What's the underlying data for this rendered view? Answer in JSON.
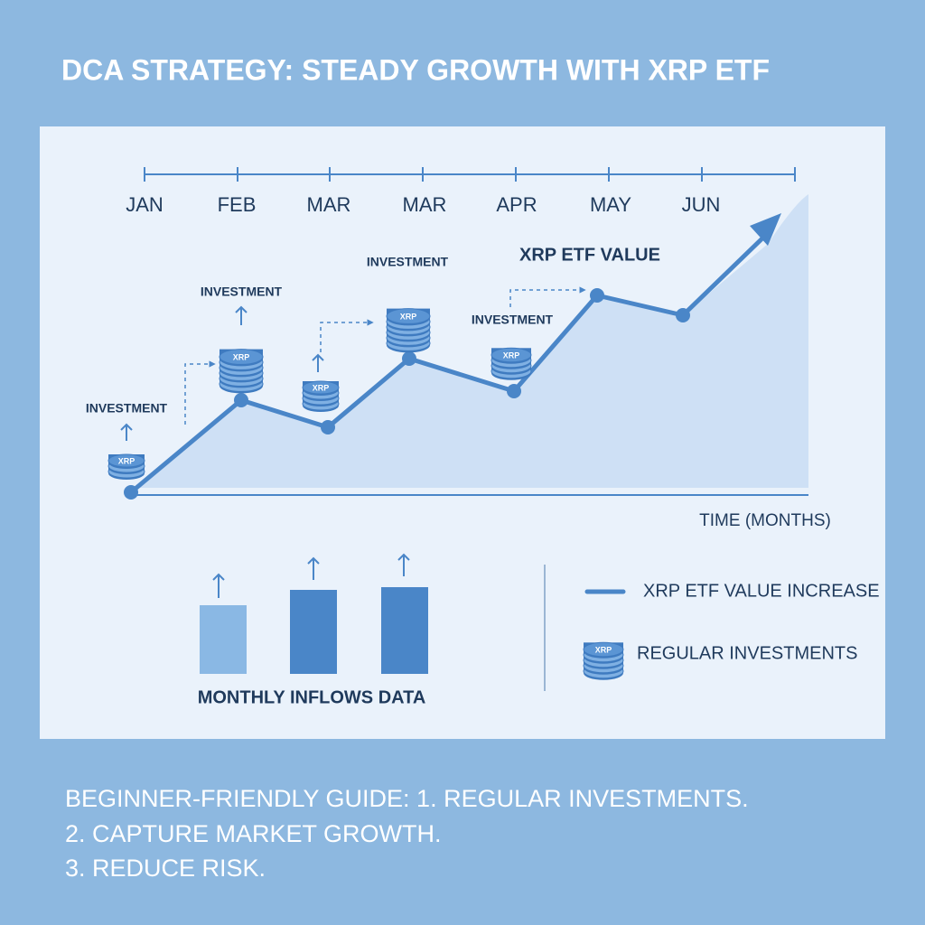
{
  "header": {
    "title": "DCA STRATEGY: STEADY GROWTH WITH XRP ETF"
  },
  "graph": {
    "months": [
      "JAN",
      "FEB",
      "MAR",
      "MAR",
      "APR",
      "MAY",
      "JUN"
    ],
    "value_label": "XRP ETF VALUE",
    "investment_label": "INVESTMENT",
    "coin_label": "XRP",
    "axis_label": "TIME (MONTHS)"
  },
  "inflows": {
    "label": "MONTHLY INFLOWS DATA"
  },
  "legend": {
    "line": "XRP ETF VALUE INCREASE",
    "coins": "REGULAR INVESTMENTS"
  },
  "footer": {
    "lines": [
      "BEGINNER-FRIENDLY GUIDE: 1. REGULAR INVESTMENTS.",
      "2. CAPTURE MARKET GROWTH.",
      "3. REDUCE RISK."
    ]
  }
}
